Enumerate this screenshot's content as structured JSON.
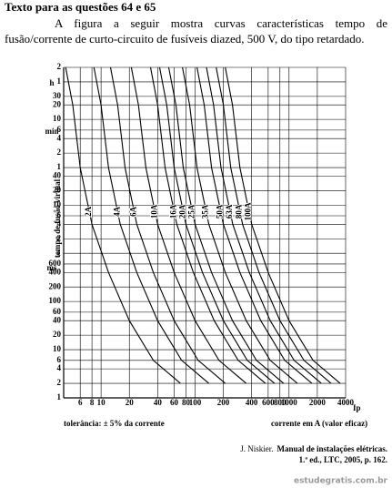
{
  "header": {
    "title": "Texto para as questões 64 e 65"
  },
  "paragraph": "A figura a seguir mostra curvas características tempo de fusão/corrente de curto-circuito de fusíveis diazed, 500 V, do tipo retardado.",
  "chart_data": {
    "type": "line",
    "xscale": "log",
    "yscale": "log",
    "grid": true,
    "y_axis_title": "tempo de fusão virtual",
    "x_axis_label": "Ip",
    "x_caption": "corrente em A (valor eficaz)",
    "note": "tolerância: ± 5% da corrente",
    "y_units": [
      "h",
      "min",
      "ms"
    ],
    "xlim": [
      4,
      4000
    ],
    "ylim": [
      0.001,
      7200
    ],
    "xticks": [
      6,
      8,
      10,
      20,
      40,
      60,
      80,
      100,
      200,
      400,
      600,
      800,
      1000,
      2000,
      4000
    ],
    "yticks": [
      {
        "value": 7200,
        "label": "2"
      },
      {
        "value": 3600,
        "label": "1"
      },
      {
        "value": 1800,
        "label": "30"
      },
      {
        "value": 1200,
        "label": "20"
      },
      {
        "value": 600,
        "label": "10"
      },
      {
        "value": 360,
        "label": "6"
      },
      {
        "value": 240,
        "label": "4"
      },
      {
        "value": 120,
        "label": "2"
      },
      {
        "value": 60,
        "label": "1"
      },
      40,
      20,
      10,
      6,
      4,
      2,
      1,
      {
        "value": 0.6,
        "label": "600"
      },
      {
        "value": 0.4,
        "label": "400"
      },
      {
        "value": 0.2,
        "label": "200"
      },
      {
        "value": 0.1,
        "label": "100"
      },
      {
        "value": 0.06,
        "label": "60"
      },
      {
        "value": 0.04,
        "label": "40"
      },
      {
        "value": 0.02,
        "label": "20"
      },
      {
        "value": 0.01,
        "label": "10"
      },
      {
        "value": 0.006,
        "label": "6"
      },
      {
        "value": 0.004,
        "label": "4"
      },
      {
        "value": 0.002,
        "label": "2"
      },
      {
        "value": 0.001,
        "label": "1"
      }
    ],
    "series": [
      {
        "name": "2A",
        "color": "#000",
        "x": [
          4.2,
          5,
          6,
          8,
          12,
          20,
          36,
          70
        ],
        "values": [
          7200,
          1200,
          60,
          4,
          0.4,
          0.04,
          0.006,
          0.002
        ]
      },
      {
        "name": "4A",
        "color": "#000",
        "x": [
          8.4,
          10,
          12,
          16,
          24,
          40,
          72,
          140
        ],
        "values": [
          7200,
          1200,
          60,
          4,
          0.4,
          0.04,
          0.006,
          0.002
        ]
      },
      {
        "name": "6A",
        "color": "#000",
        "x": [
          12.6,
          15,
          18,
          24,
          36,
          60,
          108,
          210
        ],
        "values": [
          7200,
          1200,
          60,
          4,
          0.4,
          0.04,
          0.006,
          0.002
        ]
      },
      {
        "name": "10A",
        "color": "#000",
        "x": [
          21,
          25,
          30,
          40,
          60,
          100,
          180,
          350
        ],
        "values": [
          7200,
          1200,
          60,
          4,
          0.4,
          0.04,
          0.006,
          0.002
        ]
      },
      {
        "name": "16A",
        "color": "#000",
        "x": [
          33.6,
          40,
          48,
          64,
          96,
          160,
          288,
          560
        ],
        "values": [
          7200,
          1200,
          60,
          4,
          0.4,
          0.04,
          0.006,
          0.002
        ]
      },
      {
        "name": "20A",
        "color": "#000",
        "x": [
          42,
          50,
          60,
          80,
          120,
          200,
          360,
          700
        ],
        "values": [
          7200,
          1200,
          60,
          4,
          0.4,
          0.04,
          0.006,
          0.002
        ]
      },
      {
        "name": "25A",
        "color": "#000",
        "x": [
          52.5,
          62.5,
          75,
          100,
          150,
          250,
          450,
          875
        ],
        "values": [
          7200,
          1200,
          60,
          4,
          0.4,
          0.04,
          0.006,
          0.002
        ]
      },
      {
        "name": "35A",
        "color": "#000",
        "x": [
          73.5,
          87.5,
          105,
          140,
          210,
          350,
          630,
          1225
        ],
        "values": [
          7200,
          1200,
          60,
          4,
          0.4,
          0.04,
          0.006,
          0.002
        ]
      },
      {
        "name": "50A",
        "color": "#000",
        "x": [
          105,
          125,
          150,
          200,
          300,
          500,
          900,
          1750
        ],
        "values": [
          7200,
          1200,
          60,
          4,
          0.4,
          0.04,
          0.006,
          0.002
        ]
      },
      {
        "name": "63A",
        "color": "#000",
        "x": [
          132.3,
          157.5,
          189,
          252,
          378,
          630,
          1134,
          2205
        ],
        "values": [
          7200,
          1200,
          60,
          4,
          0.4,
          0.04,
          0.006,
          0.002
        ]
      },
      {
        "name": "80A",
        "color": "#000",
        "x": [
          168,
          200,
          240,
          320,
          480,
          800,
          1440,
          2800
        ],
        "values": [
          7200,
          1200,
          60,
          4,
          0.4,
          0.04,
          0.006,
          0.002
        ]
      },
      {
        "name": "100A",
        "color": "#000",
        "x": [
          210,
          250,
          300,
          400,
          600,
          1000,
          1800,
          3500
        ],
        "values": [
          7200,
          1200,
          60,
          4,
          0.4,
          0.04,
          0.006,
          0.002
        ]
      }
    ]
  },
  "citation": {
    "author": "J. Niskier.",
    "title": "Manual de instalações elétricas.",
    "rest": "1.ª ed., LTC, 2005, p. 162."
  },
  "watermark": "estudegratis.com.br"
}
